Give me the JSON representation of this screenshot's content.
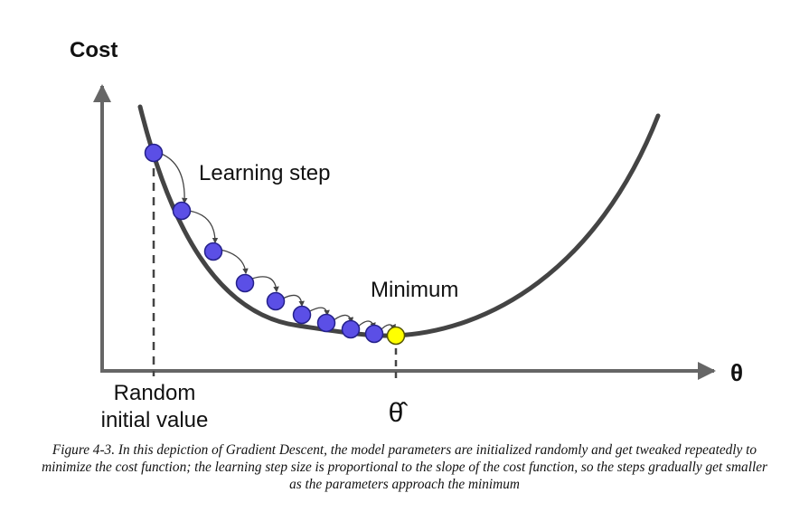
{
  "figure": {
    "y_axis_label": "Cost",
    "x_axis_label": "θ",
    "learning_step_label": "Learning step",
    "minimum_label": "Minimum",
    "random_init_line1": "Random",
    "random_init_line2": "initial value",
    "theta_hat_label": "θ̂",
    "caption": "Figure 4-3. In this depiction of Gradient Descent, the model parameters are initialized randomly and get tweaked repeatedly to minimize the cost function; the learning step size is proportional to the slope of the cost function, so the steps gradually get smaller as the parameters approach the minimum",
    "colors": {
      "curve": "#444444",
      "axis": "#666666",
      "step_point_fill": "#5b4fe6",
      "step_point_stroke": "#24208a",
      "minimum_point_fill": "#ffff00",
      "minimum_point_stroke": "#555500",
      "step_arrow": "#444444"
    }
  }
}
